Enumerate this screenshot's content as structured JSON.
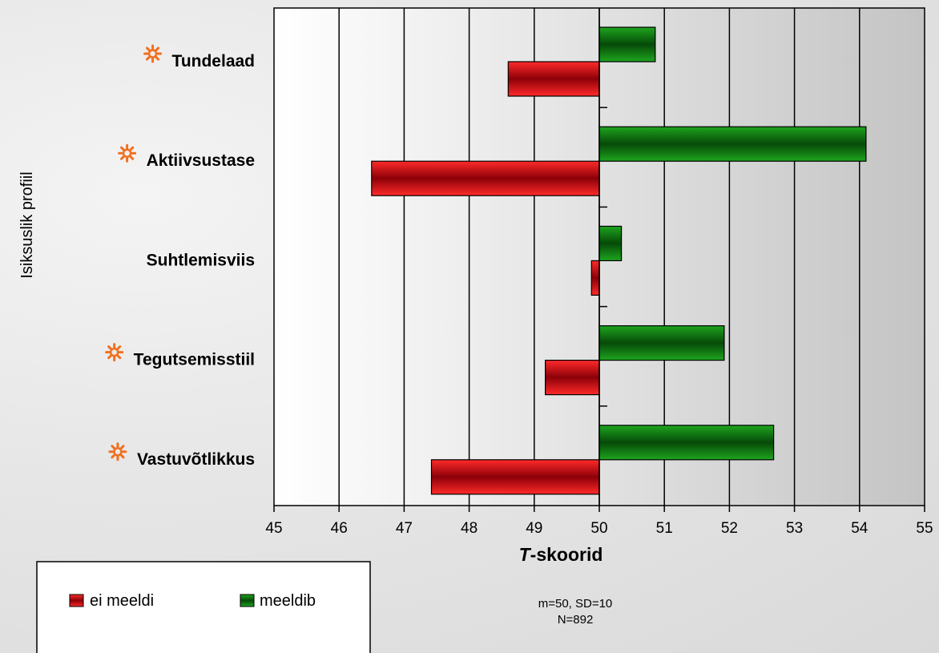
{
  "chart_data": {
    "type": "bar",
    "orientation": "horizontal",
    "baseline": 50,
    "categories": [
      "Tundelaad",
      "Aktiivsustase",
      "Suhtlemisviis",
      "Tegutsemisstiil",
      "Vastuvõtlikkus"
    ],
    "marked": [
      true,
      true,
      false,
      true,
      true
    ],
    "series": [
      {
        "name": "ei meeldi",
        "color": "#d0001a",
        "values": [
          48.6,
          46.5,
          49.88,
          49.17,
          47.42
        ]
      },
      {
        "name": "meeldib",
        "color": "#0a7a10",
        "values": [
          50.86,
          54.1,
          50.34,
          51.92,
          52.68
        ]
      }
    ],
    "xlim": [
      45,
      55
    ],
    "xticks": [
      "45",
      "46",
      "47",
      "48",
      "49",
      "50",
      "51",
      "52",
      "53",
      "54",
      "55"
    ],
    "xlabel_italic": "T",
    "xlabel_rest": "-skoorid",
    "ylabel": "Isiksuslik profiil",
    "note_line1": "m=50, SD=10",
    "note_line2": "N=892",
    "legend_position": "bottom-left",
    "grid": true,
    "marker_icon": "sun-icon",
    "marker_color": "#f07020"
  }
}
